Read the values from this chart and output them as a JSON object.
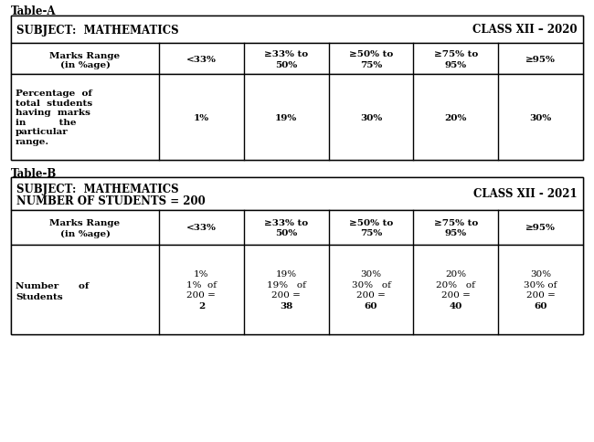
{
  "table_a_label": "Table-A",
  "table_b_label": "Table-B",
  "table_a_header_left": "SUBJECT:  MATHEMATICS",
  "table_a_header_right": "CLASS XII – 2020",
  "table_b_header_left1": "SUBJECT:  MATHEMATICS",
  "table_b_header_left2": "NUMBER OF STUDENTS = 200",
  "table_b_header_right": "CLASS XII - 2021",
  "col_headers_row1": [
    "Marks Range",
    "<33%",
    "≥33% to",
    "≥50% to",
    "≥75% to",
    "≥95%"
  ],
  "col_headers_row2": [
    "(in %age)",
    "",
    "50%",
    "75%",
    "95%",
    ""
  ],
  "table_a_row1_label": [
    "Percentage  of",
    "total  students",
    "having  marks",
    "in          the",
    "particular",
    "range."
  ],
  "table_a_data": [
    "1%",
    "19%",
    "30%",
    "20%",
    "30%"
  ],
  "table_b_row1_label": [
    "Number      of",
    "Students"
  ],
  "table_b_data": [
    [
      "1%",
      "1%  of",
      "200 =",
      "2"
    ],
    [
      "19%",
      "19%   of",
      "200 =",
      "38"
    ],
    [
      "30%",
      "30%   of",
      "200 =",
      "60"
    ],
    [
      "20%",
      "20%   of",
      "200 =",
      "40"
    ],
    [
      "30%",
      "30% of",
      "200 =",
      "60"
    ]
  ],
  "bg_color": "#ffffff",
  "border_color": "#000000"
}
